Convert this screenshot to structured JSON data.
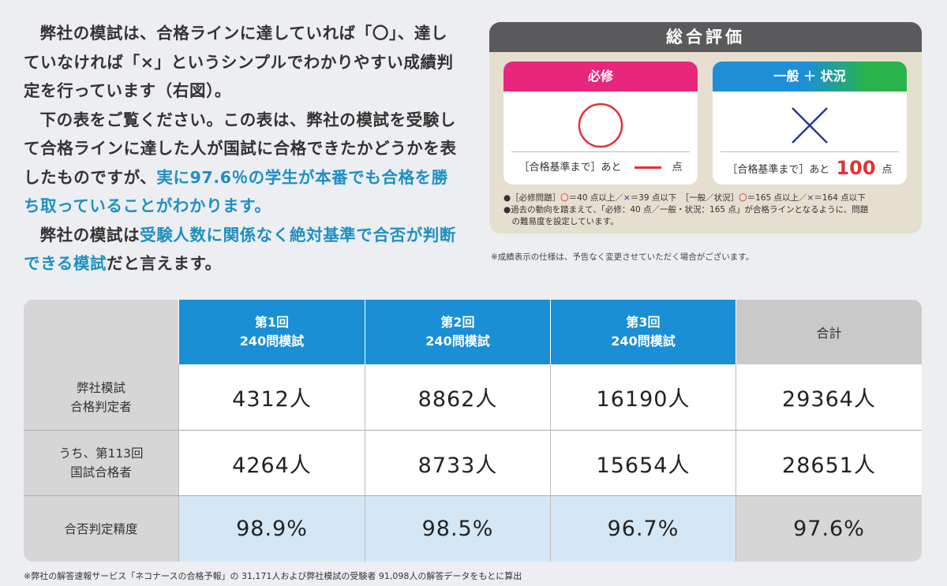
{
  "intro": {
    "p1": "弊社の模試は、合格ラインに達していれば「〇」、達していなければ「×」というシンプルでわかりやすい成績判定を行っています（右図）。",
    "p2_a": "下の表をご覧ください。この表は、弊社の模試を受験して合格ラインに達した人が国試に合格できたかどうかを表したものですが、",
    "p2_hl": "実に97.6％の学生が本番でも合格を勝ち取っていることがわかります。",
    "p3_a": "弊社の模試は",
    "p3_hl": "受験人数に関係なく絶対基準で合否が判断できる模試",
    "p3_b": "だと言えます。"
  },
  "panel": {
    "title": "総合評価",
    "card1": {
      "label": "必修",
      "mark": "circle",
      "foot_prefix": "［合格基準まで］あと",
      "foot_value": "—",
      "foot_unit": "点"
    },
    "card2": {
      "label_a": "一般",
      "label_plus": "＋",
      "label_b": "状況",
      "mark": "cross",
      "foot_prefix": "［合格基準まで］あと",
      "foot_value": "100",
      "foot_unit": "点"
    },
    "note1_a": "●［必修問題］",
    "note1_circle": "〇",
    "note1_b": "＝40 点以上／",
    "note1_cross": "×",
    "note1_c": "＝39 点以下　［一般／状況］",
    "note1_d": "＝165 点以上／",
    "note1_e": "＝164 点以下",
    "note2": "●過去の動向を踏まえて、「必修：40 点／一般・状況：165 点」が合格ラインとなるように、問題",
    "note3": "の難易度を設定しています。",
    "colors": {
      "header": "#5a5a5c",
      "magenta": "#e8267c",
      "blue": "#1e8fd6",
      "green": "#29b34a",
      "red": "#e53033"
    }
  },
  "caveat": "※成績表示の仕様は、予告なく変更させていただく場合がございます。",
  "table": {
    "headers": [
      {
        "line1": "第1回",
        "line2": "240問模試"
      },
      {
        "line1": "第2回",
        "line2": "240問模試"
      },
      {
        "line1": "第3回",
        "line2": "240問模試"
      },
      {
        "line1": "合計",
        "line2": ""
      }
    ],
    "rows": [
      {
        "label1": "弊社模試",
        "label2": "合格判定者",
        "values": [
          "4312人",
          "8862人",
          "16190人",
          "29364人"
        ]
      },
      {
        "label1": "うち、第113回",
        "label2": "国試合格者",
        "values": [
          "4264人",
          "8733人",
          "15654人",
          "28651人"
        ]
      },
      {
        "label1": "合否判定精度",
        "label2": "",
        "values": [
          "98.9%",
          "98.5%",
          "96.7%",
          "97.6%"
        ]
      }
    ]
  },
  "footnote": "※弊社の解答速報サービス「ネコナースの合格予報」の 31,171人および弊社模試の受験者 91,098人の解答データをもとに算出"
}
